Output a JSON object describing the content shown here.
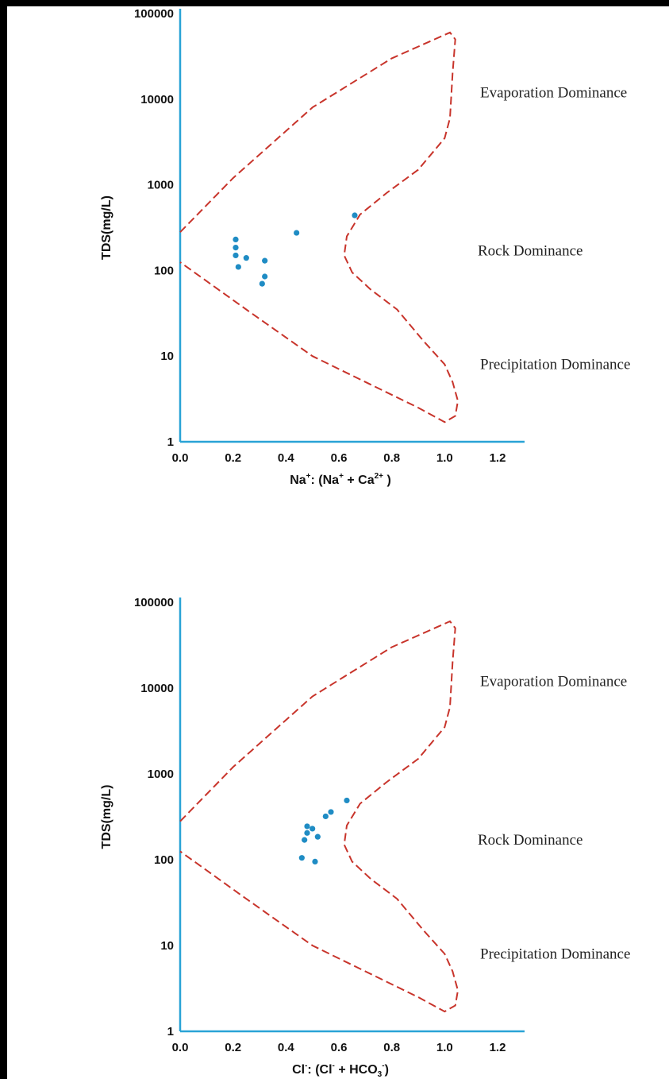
{
  "chart_data": [
    {
      "type": "scatter",
      "title": "",
      "xlabel": {
        "prefix": "Na",
        "sup1": "+",
        "mid": ": (Na",
        "sup2": "+",
        "mid2": " + Ca",
        "sup3": "2+",
        "suffix": " )"
      },
      "ylabel": "TDS(mg/L)",
      "xlim": [
        0,
        1.2
      ],
      "ylim": [
        1,
        100000
      ],
      "y_scale": "log",
      "x_ticks": [
        "0.0",
        "0.2",
        "0.4",
        "0.6",
        "0.8",
        "1.0",
        "1.2"
      ],
      "y_ticks": [
        "1",
        "10",
        "100",
        "1000",
        "10000",
        "100000"
      ],
      "regions": [
        "Evaporation Dominance",
        "Rock Dominance",
        "Precipitation Dominance"
      ],
      "colors": {
        "axis": "#29a3d6",
        "boundary": "#c8342b",
        "points": "#1f8cc4"
      },
      "points": [
        {
          "x": 0.21,
          "y": 230
        },
        {
          "x": 0.21,
          "y": 185
        },
        {
          "x": 0.21,
          "y": 150
        },
        {
          "x": 0.22,
          "y": 110
        },
        {
          "x": 0.25,
          "y": 140
        },
        {
          "x": 0.32,
          "y": 130
        },
        {
          "x": 0.32,
          "y": 85
        },
        {
          "x": 0.31,
          "y": 70
        },
        {
          "x": 0.44,
          "y": 275
        },
        {
          "x": 0.66,
          "y": 440
        }
      ]
    },
    {
      "type": "scatter",
      "title": "",
      "xlabel": {
        "prefix": "Cl",
        "sup1": "-",
        "mid": ": (Cl",
        "sup2": "-",
        "mid2": " + HCO",
        "sub3": "3",
        "sup3": "-",
        "suffix": ")"
      },
      "ylabel": "TDS(mg/L)",
      "xlim": [
        0,
        1.2
      ],
      "ylim": [
        1,
        100000
      ],
      "y_scale": "log",
      "x_ticks": [
        "0.0",
        "0.2",
        "0.4",
        "0.6",
        "0.8",
        "1.0",
        "1.2"
      ],
      "y_ticks": [
        "1",
        "10",
        "100",
        "1000",
        "10000",
        "100000"
      ],
      "regions": [
        "Evaporation Dominance",
        "Rock Dominance",
        "Precipitation Dominance"
      ],
      "colors": {
        "axis": "#29a3d6",
        "boundary": "#c8342b",
        "points": "#1f8cc4"
      },
      "points": [
        {
          "x": 0.48,
          "y": 245
        },
        {
          "x": 0.5,
          "y": 230
        },
        {
          "x": 0.48,
          "y": 205
        },
        {
          "x": 0.52,
          "y": 185
        },
        {
          "x": 0.47,
          "y": 170
        },
        {
          "x": 0.46,
          "y": 105
        },
        {
          "x": 0.51,
          "y": 95
        },
        {
          "x": 0.55,
          "y": 320
        },
        {
          "x": 0.57,
          "y": 360
        },
        {
          "x": 0.63,
          "y": 490
        }
      ]
    }
  ]
}
